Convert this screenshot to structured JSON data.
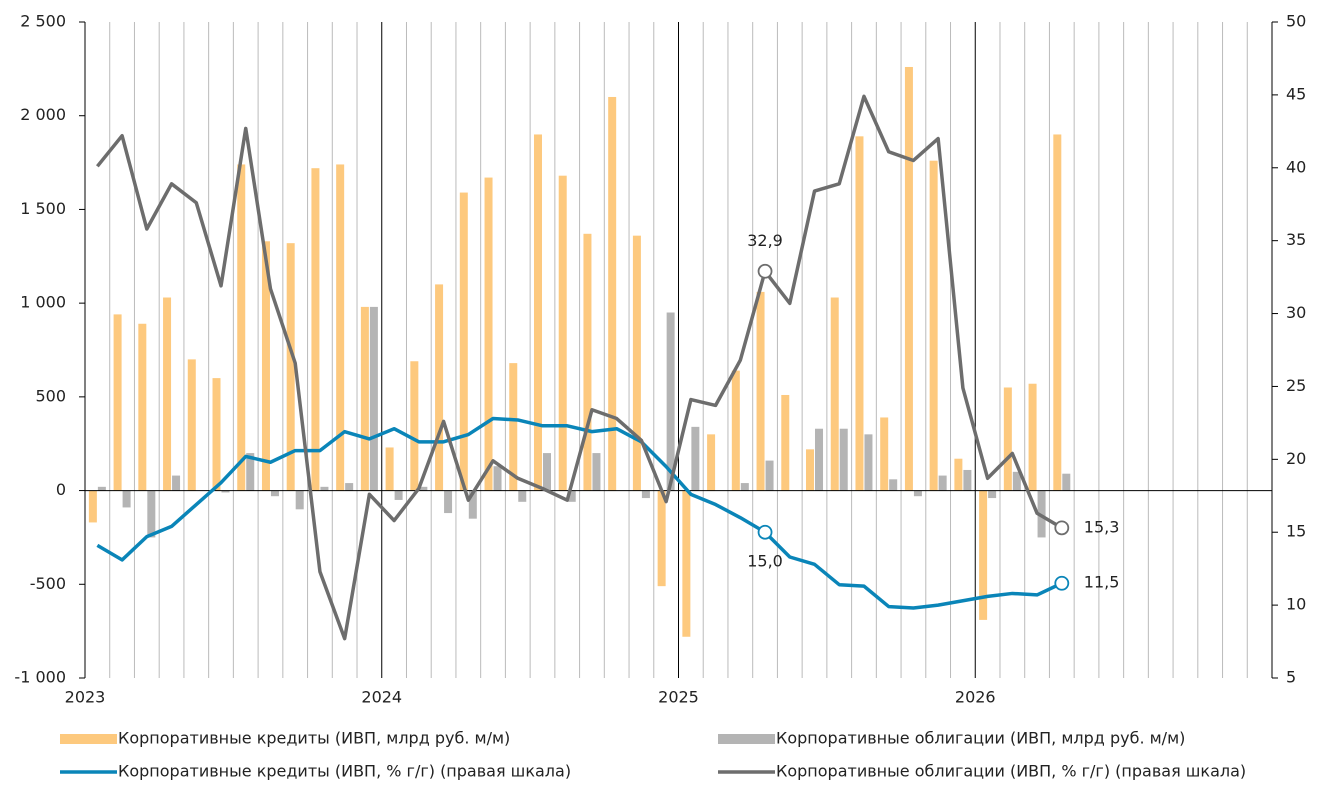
{
  "chart_data": {
    "type": "bar_line",
    "categories": [
      "2023",
      null,
      null,
      null,
      null,
      null,
      null,
      null,
      null,
      null,
      null,
      null,
      "2024",
      null,
      null,
      null,
      null,
      null,
      null,
      null,
      null,
      null,
      null,
      null,
      "2025",
      null,
      null,
      null,
      null,
      null,
      null,
      null,
      null,
      null,
      null,
      null,
      "2026",
      null,
      null,
      null,
      null,
      null,
      null,
      null,
      null,
      null,
      null,
      null
    ],
    "ylim": [
      -1000,
      2500
    ],
    "yticks": [
      {
        "value": -1000,
        "label": "-1 000"
      },
      -500,
      0,
      500,
      {
        "value": 1000,
        "label": "1 000"
      },
      {
        "value": 1500,
        "label": "1 500"
      },
      {
        "value": 2000,
        "label": "2 000"
      },
      {
        "value": 2500,
        "label": "2 500"
      }
    ],
    "y2lim": [
      5,
      50
    ],
    "y2ticks": [
      5,
      10,
      15,
      20,
      25,
      30,
      35,
      40,
      45,
      50
    ],
    "grid": true,
    "series": [
      {
        "name": "Корпоративные кредиты (ИВП, млрд руб. м/м)",
        "kind": "bar",
        "color": "#fdc97e",
        "values": [
          -170,
          940,
          890,
          1030,
          700,
          600,
          1740,
          1330,
          1320,
          1720,
          1740,
          980,
          230,
          690,
          1100,
          1590,
          1670,
          680,
          1900,
          1680,
          1370,
          2100,
          1360,
          -510,
          -780,
          300,
          640,
          1060,
          510,
          220,
          1030,
          1890,
          390,
          2260,
          1760,
          170,
          -690,
          550,
          570,
          1900,
          null,
          null,
          null,
          null,
          null,
          null,
          null,
          null
        ]
      },
      {
        "name": "Корпоративные облигации (ИВП, млрд руб. м/м)",
        "kind": "bar",
        "color": "#b4b4b4",
        "values": [
          20,
          -90,
          -250,
          80,
          0,
          -10,
          200,
          -30,
          -100,
          20,
          40,
          980,
          -50,
          20,
          -120,
          -150,
          130,
          -60,
          200,
          -60,
          200,
          0,
          -40,
          950,
          340,
          0,
          40,
          160,
          0,
          330,
          330,
          300,
          60,
          -30,
          80,
          110,
          -40,
          100,
          -250,
          90,
          null,
          null,
          null,
          null,
          null,
          null,
          null,
          null
        ]
      },
      {
        "name": "Корпоративные кредиты (ИВП, % г/г) (правая шкала)",
        "kind": "line",
        "axis": "y2",
        "color": "#0a85b8",
        "values": [
          14.1,
          13.1,
          14.7,
          15.4,
          16.9,
          18.4,
          20.2,
          19.8,
          20.6,
          20.6,
          21.9,
          21.4,
          22.1,
          21.2,
          21.2,
          21.7,
          22.8,
          22.7,
          22.3,
          22.3,
          21.9,
          22.1,
          21.2,
          19.5,
          17.6,
          16.9,
          16.0,
          15.0,
          13.3,
          12.8,
          11.4,
          11.3,
          9.9,
          9.8,
          10.0,
          10.3,
          10.6,
          10.8,
          10.7,
          11.5,
          null,
          null,
          null,
          null,
          null,
          null,
          null,
          null
        ],
        "value_labels": [
          null,
          null,
          null,
          null,
          null,
          null,
          null,
          null,
          null,
          null,
          null,
          null,
          null,
          null,
          null,
          null,
          null,
          null,
          null,
          null,
          null,
          null,
          null,
          null,
          null,
          null,
          null,
          "15,0",
          null,
          null,
          null,
          null,
          null,
          null,
          null,
          null,
          null,
          null,
          null,
          "11,5",
          null,
          null,
          null,
          null,
          null,
          null,
          null,
          null
        ]
      },
      {
        "name": "Корпоративные облигации (ИВП, % г/г) (правая шкала)",
        "kind": "line",
        "axis": "y2",
        "color": "#6d6d6d",
        "values": [
          40.1,
          42.2,
          35.8,
          38.9,
          37.6,
          31.9,
          42.7,
          31.7,
          26.6,
          12.3,
          7.7,
          17.6,
          15.8,
          18.0,
          22.6,
          17.2,
          19.9,
          18.7,
          18.0,
          17.2,
          23.4,
          22.8,
          21.3,
          17.1,
          24.1,
          23.7,
          26.8,
          32.9,
          30.7,
          38.4,
          38.9,
          44.9,
          41.1,
          40.5,
          42.0,
          24.9,
          18.7,
          20.4,
          16.3,
          15.3,
          null,
          null,
          null,
          null,
          null,
          null,
          null,
          null
        ],
        "value_labels": [
          null,
          null,
          null,
          null,
          null,
          null,
          null,
          null,
          null,
          null,
          null,
          null,
          null,
          null,
          null,
          null,
          null,
          null,
          null,
          null,
          null,
          null,
          null,
          null,
          null,
          null,
          null,
          "32,9",
          null,
          null,
          null,
          null,
          null,
          null,
          null,
          null,
          null,
          null,
          null,
          "15,3",
          null,
          null,
          null,
          null,
          null,
          null,
          null,
          null
        ]
      }
    ]
  }
}
